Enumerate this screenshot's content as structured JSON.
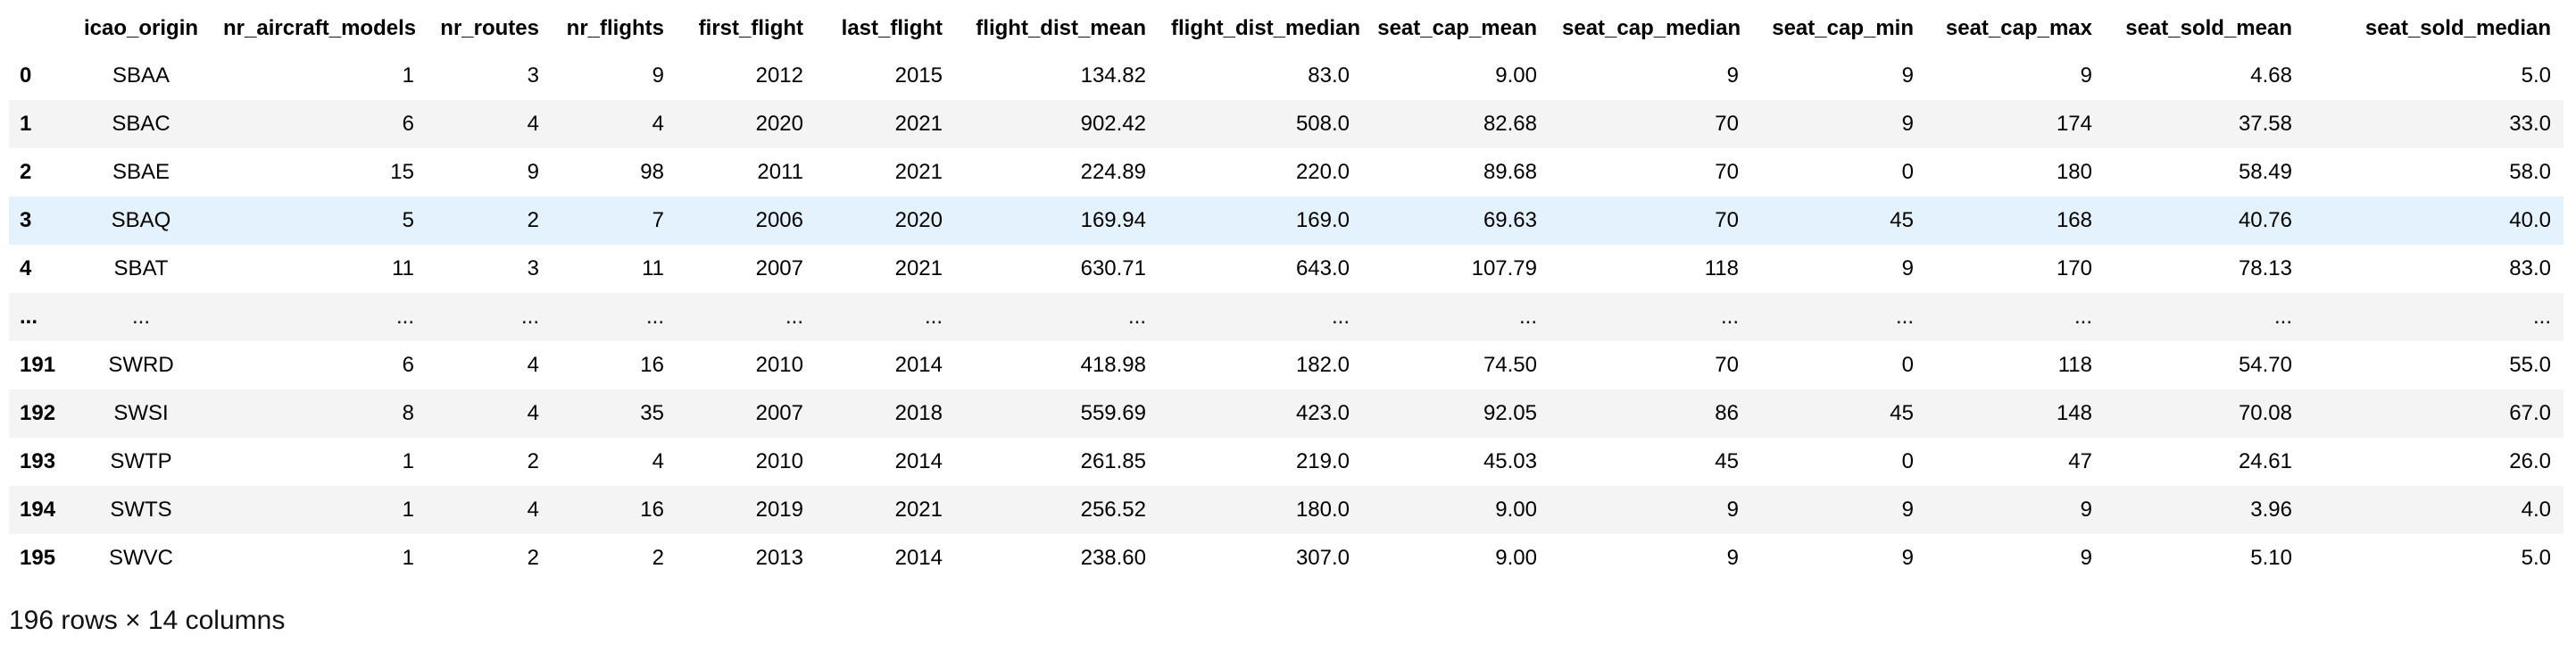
{
  "table": {
    "columns": [
      "icao_origin",
      "nr_aircraft_models",
      "nr_routes",
      "nr_flights",
      "first_flight",
      "last_flight",
      "flight_dist_mean",
      "flight_dist_median",
      "seat_cap_mean",
      "seat_cap_median",
      "seat_cap_min",
      "seat_cap_max",
      "seat_sold_mean",
      "seat_sold_median"
    ],
    "rows": [
      {
        "index": "0",
        "cells": [
          "SBAA",
          "1",
          "3",
          "9",
          "2012",
          "2015",
          "134.82",
          "83.0",
          "9.00",
          "9",
          "9",
          "9",
          "4.68",
          "5.0"
        ]
      },
      {
        "index": "1",
        "cells": [
          "SBAC",
          "6",
          "4",
          "4",
          "2020",
          "2021",
          "902.42",
          "508.0",
          "82.68",
          "70",
          "9",
          "174",
          "37.58",
          "33.0"
        ]
      },
      {
        "index": "2",
        "cells": [
          "SBAE",
          "15",
          "9",
          "98",
          "2011",
          "2021",
          "224.89",
          "220.0",
          "89.68",
          "70",
          "0",
          "180",
          "58.49",
          "58.0"
        ]
      },
      {
        "index": "3",
        "cells": [
          "SBAQ",
          "5",
          "2",
          "7",
          "2006",
          "2020",
          "169.94",
          "169.0",
          "69.63",
          "70",
          "45",
          "168",
          "40.76",
          "40.0"
        ]
      },
      {
        "index": "4",
        "cells": [
          "SBAT",
          "11",
          "3",
          "11",
          "2007",
          "2021",
          "630.71",
          "643.0",
          "107.79",
          "118",
          "9",
          "170",
          "78.13",
          "83.0"
        ]
      },
      {
        "index": "...",
        "cells": [
          "...",
          "...",
          "...",
          "...",
          "...",
          "...",
          "...",
          "...",
          "...",
          "...",
          "...",
          "...",
          "...",
          "..."
        ]
      },
      {
        "index": "191",
        "cells": [
          "SWRD",
          "6",
          "4",
          "16",
          "2010",
          "2014",
          "418.98",
          "182.0",
          "74.50",
          "70",
          "0",
          "118",
          "54.70",
          "55.0"
        ]
      },
      {
        "index": "192",
        "cells": [
          "SWSI",
          "8",
          "4",
          "35",
          "2007",
          "2018",
          "559.69",
          "423.0",
          "92.05",
          "86",
          "45",
          "148",
          "70.08",
          "67.0"
        ]
      },
      {
        "index": "193",
        "cells": [
          "SWTP",
          "1",
          "2",
          "4",
          "2010",
          "2014",
          "261.85",
          "219.0",
          "45.03",
          "45",
          "0",
          "47",
          "24.61",
          "26.0"
        ]
      },
      {
        "index": "194",
        "cells": [
          "SWTS",
          "1",
          "4",
          "16",
          "2019",
          "2021",
          "256.52",
          "180.0",
          "9.00",
          "9",
          "9",
          "9",
          "3.96",
          "4.0"
        ]
      },
      {
        "index": "195",
        "cells": [
          "SWVC",
          "1",
          "2",
          "2",
          "2013",
          "2014",
          "238.60",
          "307.0",
          "9.00",
          "9",
          "9",
          "9",
          "5.10",
          "5.0"
        ]
      }
    ],
    "highlighted_row": 3
  },
  "caption": "196 rows × 14 columns",
  "colors": {
    "stripe": "#f4f4f4",
    "hover_row": "#e4f2fd",
    "text": "#000000"
  }
}
